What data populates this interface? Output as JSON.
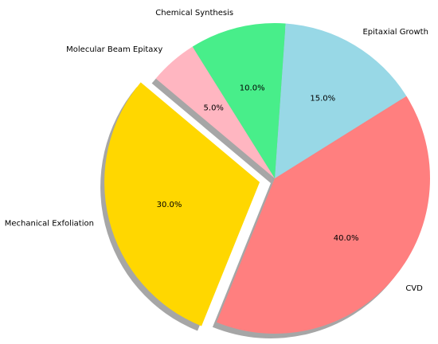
{
  "chart_data": {
    "type": "pie",
    "categories": [
      "Mechanical Exfoliation",
      "CVD",
      "Epitaxial Growth",
      "Chemical Synthesis",
      "Molecular Beam Epitaxy"
    ],
    "values": [
      30,
      40,
      15,
      10,
      5
    ],
    "value_labels": [
      "30.0%",
      "40.0%",
      "15.0%",
      "10.0%",
      "5.0%"
    ],
    "colors": [
      "#ffd700",
      "#ff7f7f",
      "#98d8e6",
      "#48ee8a",
      "#ffb6c1"
    ],
    "explode": [
      0.1,
      0,
      0,
      0,
      0
    ],
    "shadow": true
  }
}
